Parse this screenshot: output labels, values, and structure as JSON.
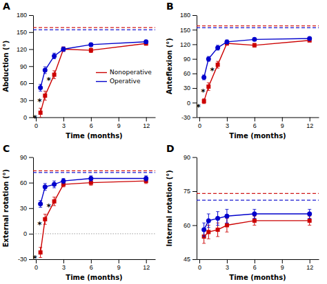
{
  "chart_data": [
    {
      "type": "line",
      "title": "A",
      "x_label": "Time (months)",
      "y_label": "Abduction (°)",
      "x": [
        0.5,
        1,
        2,
        3,
        6,
        12
      ],
      "series": [
        {
          "name": "Nonoperative",
          "color": "#cc0000",
          "marker": "square",
          "values": [
            8,
            38,
            75,
            120,
            118,
            130
          ],
          "errors": [
            8,
            8,
            7,
            4,
            4,
            3
          ]
        },
        {
          "name": "Operative",
          "color": "#0000cc",
          "marker": "circle",
          "values": [
            52,
            83,
            108,
            120,
            128,
            133
          ],
          "errors": [
            6,
            6,
            5,
            4,
            3,
            3
          ]
        }
      ],
      "reference_lines": [
        {
          "value": 154,
          "color": "#0000cc",
          "line_style": "dashed"
        },
        {
          "value": 158,
          "color": "#cc0000",
          "line_style": "dashed"
        }
      ],
      "annotations": [
        {
          "text": "*",
          "x": 0.5
        },
        {
          "text": "*",
          "x": 1
        },
        {
          "text": "*",
          "x": 2
        }
      ],
      "xlim": [
        -0.3,
        13
      ],
      "xticks": [
        0,
        3,
        6,
        9,
        12
      ],
      "ylim": [
        0,
        180
      ],
      "yticks": [
        0,
        30,
        60,
        90,
        120,
        150,
        180
      ],
      "grid": false,
      "legend": "right"
    },
    {
      "type": "line",
      "title": "B",
      "x_label": "Time (months)",
      "y_label": "Anteflexion (°)",
      "x": [
        0.5,
        1,
        2,
        3,
        6,
        12
      ],
      "series": [
        {
          "name": "Nonoperative",
          "color": "#cc0000",
          "marker": "square",
          "values": [
            3,
            33,
            78,
            122,
            118,
            128
          ],
          "errors": [
            5,
            8,
            7,
            4,
            4,
            3
          ]
        },
        {
          "name": "Operative",
          "color": "#0000cc",
          "marker": "circle",
          "values": [
            52,
            90,
            113,
            125,
            130,
            132
          ],
          "errors": [
            5,
            5,
            5,
            4,
            3,
            3
          ]
        }
      ],
      "reference_lines": [
        {
          "value": 154,
          "color": "#0000cc",
          "line_style": "dashed"
        },
        {
          "value": 158,
          "color": "#cc0000",
          "line_style": "dashed"
        }
      ],
      "annotations": [
        {
          "text": "*",
          "x": 0.5
        },
        {
          "text": "*",
          "x": 1
        },
        {
          "text": "*",
          "x": 2
        }
      ],
      "xlim": [
        -0.3,
        13
      ],
      "xticks": [
        0,
        3,
        6,
        9,
        12
      ],
      "ylim": [
        -30,
        180
      ],
      "yticks": [
        -30,
        0,
        30,
        60,
        90,
        120,
        150,
        180
      ],
      "grid": false,
      "legend": false
    },
    {
      "type": "line",
      "title": "C",
      "x_label": "Time (months)",
      "y_label": "External rotation (°)",
      "x": [
        0.5,
        1,
        2,
        3,
        6,
        12
      ],
      "series": [
        {
          "name": "Nonoperative",
          "color": "#cc0000",
          "marker": "square",
          "values": [
            -22,
            17,
            38,
            58,
            60,
            62
          ],
          "errors": [
            6,
            6,
            5,
            3,
            3,
            3
          ]
        },
        {
          "name": "Operative",
          "color": "#0000cc",
          "marker": "circle",
          "values": [
            35,
            55,
            58,
            62,
            65,
            65
          ],
          "errors": [
            4,
            4,
            4,
            3,
            3,
            3
          ]
        }
      ],
      "reference_lines": [
        {
          "value": 72,
          "color": "#0000cc",
          "line_style": "dashed"
        },
        {
          "value": 74,
          "color": "#cc0000",
          "line_style": "dashed"
        },
        {
          "value": 0,
          "color": "gray",
          "line_style": "dotted"
        }
      ],
      "annotations": [
        {
          "text": "*",
          "x": 0.5
        },
        {
          "text": "*",
          "x": 1
        },
        {
          "text": "*",
          "x": 2
        }
      ],
      "xlim": [
        -0.3,
        13
      ],
      "xticks": [
        0,
        3,
        6,
        9,
        12
      ],
      "ylim": [
        -30,
        90
      ],
      "yticks": [
        -30,
        0,
        30,
        60,
        90
      ],
      "grid": false,
      "legend": false
    },
    {
      "type": "line",
      "title": "D",
      "x_label": "Time (months)",
      "y_label": "Internal rotation (°)",
      "x": [
        0.5,
        1,
        2,
        3,
        6,
        12
      ],
      "series": [
        {
          "name": "Nonoperative",
          "color": "#cc0000",
          "marker": "square",
          "values": [
            55,
            57,
            58,
            60,
            62,
            62
          ],
          "errors": [
            3,
            3,
            3,
            3,
            2,
            2
          ]
        },
        {
          "name": "Operative",
          "color": "#0000cc",
          "marker": "circle",
          "values": [
            58,
            62,
            63,
            64,
            65,
            65
          ],
          "errors": [
            3,
            3,
            3,
            3,
            2,
            2
          ]
        }
      ],
      "reference_lines": [
        {
          "value": 71,
          "color": "#0000cc",
          "line_style": "dashed"
        },
        {
          "value": 74,
          "color": "#cc0000",
          "line_style": "dashed"
        }
      ],
      "xlim": [
        -0.3,
        13
      ],
      "xticks": [
        0,
        3,
        6,
        9,
        12
      ],
      "ylim": [
        45,
        90
      ],
      "yticks": [
        45,
        60,
        75,
        90
      ],
      "grid": false,
      "legend": false
    }
  ]
}
